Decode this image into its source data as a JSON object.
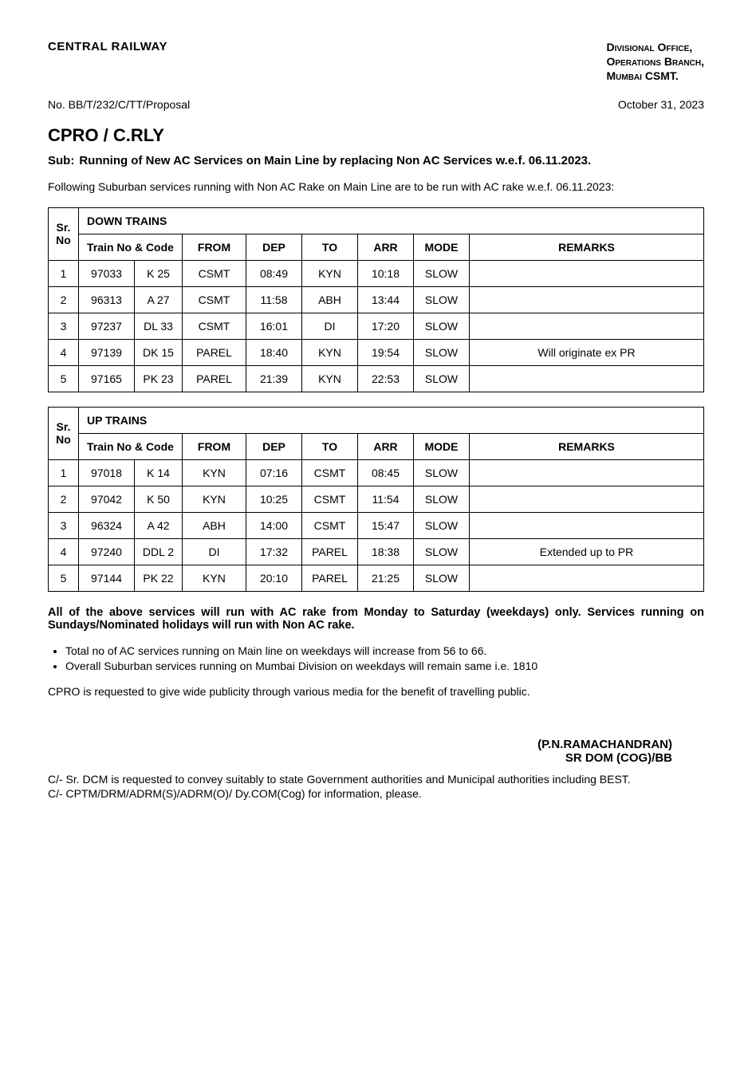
{
  "header": {
    "org": "CENTRAL RAILWAY",
    "office_line1": "Divisional Office,",
    "office_line2": "Operations Branch,",
    "office_line3": "Mumbai CSMT.",
    "ref_no": "No. BB/T/232/C/TT/Proposal",
    "date": "October 31, 2023"
  },
  "addressee": "CPRO / C.RLY",
  "subject": {
    "label": "Sub:",
    "text": "Running of New AC Services on Main Line by replacing Non AC Services w.e.f. 06.11.2023."
  },
  "intro": "Following Suburban services running with Non AC Rake on Main Line are to be run with AC rake w.e.f. 06.11.2023:",
  "table_headers": {
    "srno": "Sr. No",
    "train_no_code": "Train No & Code",
    "from": "FROM",
    "dep": "DEP",
    "to": "TO",
    "arr": "ARR",
    "mode": "MODE",
    "remarks": "REMARKS"
  },
  "down_trains": {
    "section_title": "DOWN TRAINS",
    "rows": [
      {
        "sr": "1",
        "tno": "97033",
        "code": "K 25",
        "from": "CSMT",
        "dep": "08:49",
        "to": "KYN",
        "arr": "10:18",
        "mode": "SLOW",
        "remarks": ""
      },
      {
        "sr": "2",
        "tno": "96313",
        "code": "A 27",
        "from": "CSMT",
        "dep": "11:58",
        "to": "ABH",
        "arr": "13:44",
        "mode": "SLOW",
        "remarks": ""
      },
      {
        "sr": "3",
        "tno": "97237",
        "code": "DL 33",
        "from": "CSMT",
        "dep": "16:01",
        "to": "DI",
        "arr": "17:20",
        "mode": "SLOW",
        "remarks": ""
      },
      {
        "sr": "4",
        "tno": "97139",
        "code": "DK 15",
        "from": "PAREL",
        "dep": "18:40",
        "to": "KYN",
        "arr": "19:54",
        "mode": "SLOW",
        "remarks": "Will originate ex PR"
      },
      {
        "sr": "5",
        "tno": "97165",
        "code": "PK 23",
        "from": "PAREL",
        "dep": "21:39",
        "to": "KYN",
        "arr": "22:53",
        "mode": "SLOW",
        "remarks": ""
      }
    ]
  },
  "up_trains": {
    "section_title": "UP TRAINS",
    "rows": [
      {
        "sr": "1",
        "tno": "97018",
        "code": "K 14",
        "from": "KYN",
        "dep": "07:16",
        "to": "CSMT",
        "arr": "08:45",
        "mode": "SLOW",
        "remarks": ""
      },
      {
        "sr": "2",
        "tno": "97042",
        "code": "K 50",
        "from": "KYN",
        "dep": "10:25",
        "to": "CSMT",
        "arr": "11:54",
        "mode": "SLOW",
        "remarks": ""
      },
      {
        "sr": "3",
        "tno": "96324",
        "code": "A 42",
        "from": "ABH",
        "dep": "14:00",
        "to": "CSMT",
        "arr": "15:47",
        "mode": "SLOW",
        "remarks": ""
      },
      {
        "sr": "4",
        "tno": "97240",
        "code": "DDL 2",
        "from": "DI",
        "dep": "17:32",
        "to": "PAREL",
        "arr": "18:38",
        "mode": "SLOW",
        "remarks": "Extended up to PR"
      },
      {
        "sr": "5",
        "tno": "97144",
        "code": "PK 22",
        "from": "KYN",
        "dep": "20:10",
        "to": "PAREL",
        "arr": "21:25",
        "mode": "SLOW",
        "remarks": ""
      }
    ]
  },
  "note_bold": "All of the above services will run with AC rake from Monday to Saturday (weekdays) only.  Services running on Sundays/Nominated holidays will run with Non AC rake.",
  "bullets": [
    "Total no of AC services running on Main line on weekdays will increase from 56 to 66.",
    "Overall Suburban services running on Mumbai Division on weekdays will remain same i.e. 1810"
  ],
  "request": "CPRO is requested to give wide publicity through various media for the benefit of travelling public.",
  "signature": {
    "name": "(P.N.RAMACHANDRAN)",
    "title": "SR DOM (COG)/BB"
  },
  "cc": [
    "C/- Sr. DCM is requested to convey suitably to state Government authorities and Municipal authorities including BEST.",
    "C/- CPTM/DRM/ADRM(S)/ADRM(O)/ Dy.COM(Cog) for information, please."
  ]
}
